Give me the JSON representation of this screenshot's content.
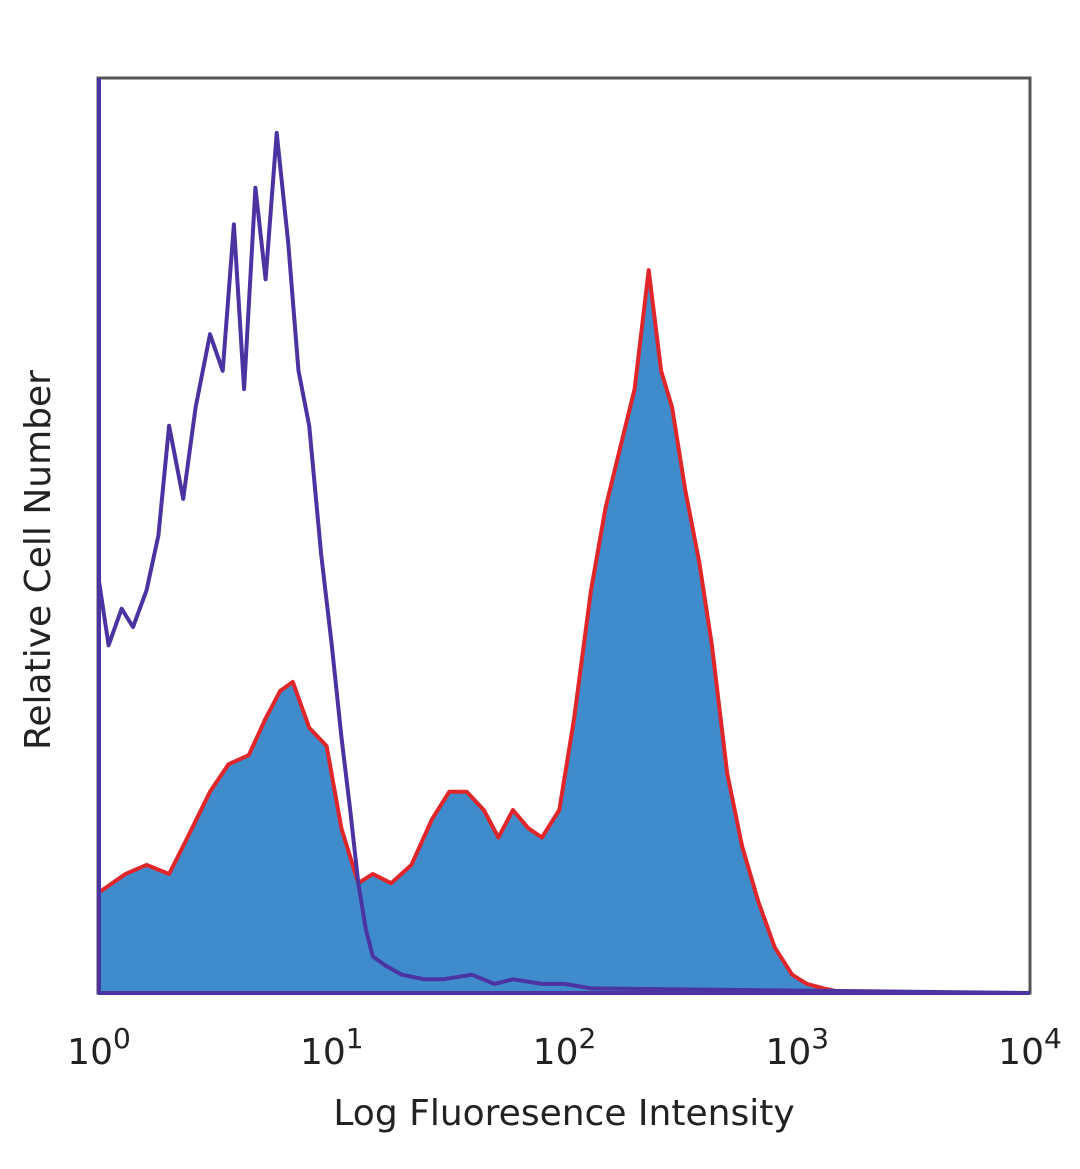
{
  "chart_data": {
    "type": "area",
    "title": "",
    "xlabel": "Log Fluoresence Intensity",
    "ylabel": "Relative Cell Number",
    "x_scale": "log",
    "xlim": [
      1,
      10000
    ],
    "ylim": [
      0,
      100
    ],
    "x_ticks": [
      {
        "value": 1,
        "base": "10",
        "exp": "0"
      },
      {
        "value": 10,
        "base": "10",
        "exp": "1"
      },
      {
        "value": 100,
        "base": "10",
        "exp": "2"
      },
      {
        "value": 1000,
        "base": "10",
        "exp": "3"
      },
      {
        "value": 10000,
        "base": "10",
        "exp": "4"
      }
    ],
    "grid": false,
    "legend": "none",
    "series": [
      {
        "style": "filled",
        "fill": "#3f8bcb",
        "stroke": "#e0262a",
        "x": [
          1,
          1.3,
          1.6,
          2,
          2.4,
          3,
          3.6,
          4.4,
          5.2,
          6,
          6.8,
          8,
          9.5,
          11,
          13,
          15,
          18,
          22,
          27,
          32,
          38,
          45,
          52,
          60,
          70,
          80,
          95,
          110,
          130,
          150,
          175,
          200,
          230,
          260,
          290,
          330,
          380,
          430,
          500,
          580,
          680,
          800,
          950,
          1100,
          1300,
          1600,
          2000,
          10000
        ],
        "y": [
          11,
          13,
          14,
          13,
          17,
          22,
          25,
          26,
          30,
          33,
          34,
          29,
          27,
          18,
          12,
          13,
          12,
          14,
          19,
          22,
          22,
          20,
          17,
          20,
          18,
          17,
          20,
          30,
          44,
          53,
          60,
          66,
          79,
          68,
          64,
          55,
          47,
          38,
          24,
          16,
          10,
          5,
          2,
          1,
          0.5,
          0,
          0,
          0
        ]
      },
      {
        "style": "line",
        "stroke": "#4b33a2",
        "x": [
          1,
          1.1,
          1.25,
          1.4,
          1.6,
          1.8,
          2,
          2.3,
          2.6,
          3,
          3.4,
          3.8,
          4.2,
          4.7,
          5.2,
          5.8,
          6.5,
          7.2,
          8,
          9,
          10,
          11,
          12,
          13,
          14,
          15,
          17,
          20,
          25,
          30,
          40,
          50,
          60,
          80,
          100,
          130,
          10000
        ],
        "y": [
          45,
          38,
          42,
          40,
          44,
          50,
          62,
          54,
          64,
          72,
          68,
          84,
          66,
          88,
          78,
          94,
          82,
          68,
          62,
          48,
          38,
          28,
          20,
          12,
          7,
          4,
          3,
          2,
          1.5,
          1.5,
          2,
          1,
          1.5,
          1,
          1,
          0.5,
          0
        ]
      }
    ]
  }
}
